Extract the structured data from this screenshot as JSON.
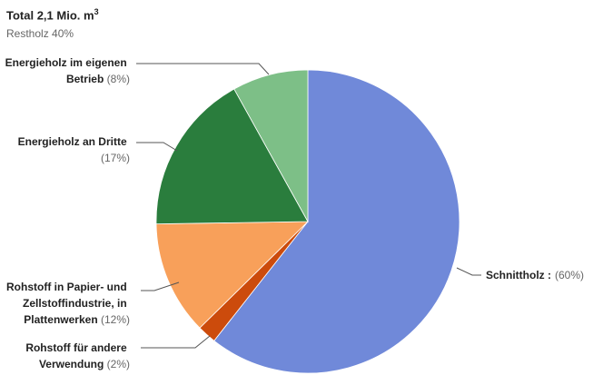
{
  "chart_data": {
    "type": "pie",
    "title": "Total 2,1 Mio. m",
    "title_superscript": "3",
    "subtitle": "Restholz 40%",
    "slices": [
      {
        "label": "Schnittholz :",
        "value": 60,
        "pct_label": "(60%)",
        "color": "#7089d9"
      },
      {
        "label": "Rohstoff für andere Verwendung",
        "value": 2,
        "pct_label": "(2%)",
        "color": "#cc4b0c"
      },
      {
        "label": "Rohstoff in Papier- und Zellstoffindustrie, in Plattenwerken",
        "value": 12,
        "pct_label": "(12%)",
        "color": "#f8a05a"
      },
      {
        "label": "Energieholz an Dritte",
        "value": 17,
        "pct_label": "(17%)",
        "color": "#2a7d3d"
      },
      {
        "label": "Energieholz im eigenen Betrieb",
        "value": 8,
        "pct_label": "(8%)",
        "color": "#7dbf87"
      }
    ],
    "legend": "none",
    "start_angle_deg": 0,
    "direction": "clockwise"
  }
}
